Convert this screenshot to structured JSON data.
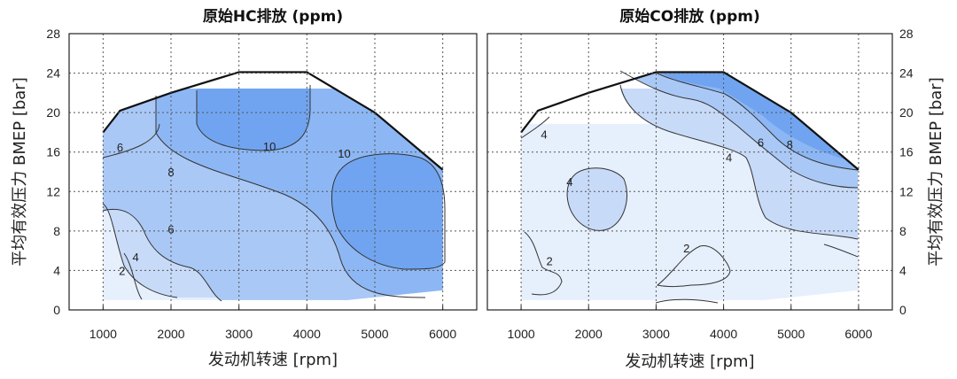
{
  "chart_data": [
    {
      "type": "heatmap",
      "subtype": "contour",
      "title": "原始HC排放 (ppm)",
      "xlabel": "发动机转速 [rpm]",
      "ylabel": "平均有效压力 BMEP [bar]",
      "ylabel_side": "left",
      "xlim": [
        500,
        6500
      ],
      "ylim": [
        0,
        28
      ],
      "xticks": [
        1000,
        2000,
        3000,
        4000,
        5000,
        6000
      ],
      "yticks": [
        0,
        4,
        8,
        12,
        16,
        20,
        24,
        28
      ],
      "grid": true,
      "contour_levels": [
        2,
        4,
        6,
        8,
        10
      ],
      "contour_labels": [
        {
          "x": 1280,
          "y": 4.0,
          "text": "2"
        },
        {
          "x": 1480,
          "y": 5.4,
          "text": "4"
        },
        {
          "x": 1250,
          "y": 16.5,
          "text": "6"
        },
        {
          "x": 2000,
          "y": 8.2,
          "text": "6"
        },
        {
          "x": 2000,
          "y": 14.0,
          "text": "8"
        },
        {
          "x": 3450,
          "y": 16.6,
          "text": "10"
        },
        {
          "x": 4550,
          "y": 15.9,
          "text": "10"
        }
      ],
      "max_load_curve": [
        [
          1000,
          18
        ],
        [
          1250,
          20.2
        ],
        [
          2000,
          22
        ],
        [
          3000,
          24.1
        ],
        [
          4000,
          24.1
        ],
        [
          5000,
          20
        ],
        [
          6000,
          14.2
        ]
      ]
    },
    {
      "type": "heatmap",
      "subtype": "contour",
      "title": "原始CO排放 (ppm)",
      "xlabel": "发动机转速 [rpm]",
      "ylabel": "平均有效压力 BMEP [bar]",
      "ylabel_side": "right",
      "xlim": [
        500,
        6500
      ],
      "ylim": [
        0,
        28
      ],
      "xticks": [
        1000,
        2000,
        3000,
        4000,
        5000,
        6000
      ],
      "yticks": [
        0,
        4,
        8,
        12,
        16,
        20,
        24,
        28
      ],
      "grid": true,
      "contour_levels": [
        2,
        4,
        6,
        8
      ],
      "contour_labels": [
        {
          "x": 1340,
          "y": 17.8,
          "text": "4"
        },
        {
          "x": 1720,
          "y": 13.0,
          "text": "4"
        },
        {
          "x": 1420,
          "y": 5.0,
          "text": "2"
        },
        {
          "x": 3450,
          "y": 6.3,
          "text": "2"
        },
        {
          "x": 4080,
          "y": 15.5,
          "text": "4"
        },
        {
          "x": 4550,
          "y": 17.0,
          "text": "6"
        },
        {
          "x": 4980,
          "y": 16.8,
          "text": "8"
        }
      ],
      "max_load_curve": [
        [
          1000,
          18
        ],
        [
          1250,
          20.2
        ],
        [
          2000,
          22
        ],
        [
          3000,
          24.1
        ],
        [
          4000,
          24.1
        ],
        [
          5000,
          20
        ],
        [
          6000,
          14.2
        ]
      ]
    }
  ],
  "colors": {
    "level_0": "#e6effc",
    "level_1": "#c7daf8",
    "level_2": "#a9c8f6",
    "level_3": "#8db7f4",
    "level_4": "#70a4f0"
  }
}
